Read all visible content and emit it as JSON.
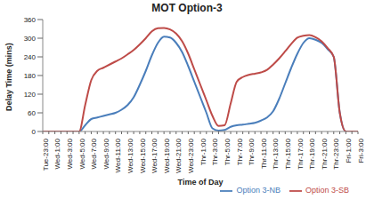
{
  "chart_data": {
    "type": "line",
    "title": "MOT Option-3",
    "x_label": "Time of Day",
    "y_label": "Delay Time (mins)",
    "categories": [
      "Tue-23:00",
      null,
      "Wed-1:00",
      null,
      "Wed-3:00",
      null,
      "Wed-5:00",
      null,
      "Wed-7:00",
      null,
      "Wed-9:00",
      null,
      "Wed-11:00",
      null,
      "Wed-13:00",
      null,
      "Wed-15:00",
      null,
      "Wed-17:00",
      null,
      "Wed-19:00",
      null,
      "Wed-21:00",
      null,
      "Wed-23:00",
      null,
      "Thr-1:00",
      null,
      "Thr-3:00",
      null,
      "Thr-5:00",
      null,
      "Thr-7:00",
      null,
      "Thr-9:00",
      null,
      "Thr-11:00",
      null,
      "Thr-13:00",
      null,
      "Thr-15:00",
      null,
      "Thr-17:00",
      null,
      "Thr-19:00",
      null,
      "Thr-21:00",
      null,
      "Thr-23:00",
      null,
      "Fri-1:00",
      null,
      "Fri-3:00"
    ],
    "series": [
      {
        "name": "Option 3-NB",
        "color": "#4a7ebb",
        "values": [
          0,
          0,
          0,
          0,
          0,
          0,
          0,
          20,
          40,
          45,
          50,
          55,
          60,
          70,
          85,
          110,
          150,
          195,
          245,
          285,
          305,
          302,
          285,
          255,
          210,
          160,
          110,
          60,
          10,
          3,
          5,
          15,
          20,
          22,
          25,
          28,
          35,
          45,
          65,
          105,
          155,
          205,
          250,
          285,
          300,
          295,
          285,
          265,
          240,
          60,
          0,
          0,
          0
        ]
      },
      {
        "name": "Option 3-SB",
        "color": "#be4b48",
        "values": [
          0,
          0,
          0,
          0,
          0,
          0,
          0,
          85,
          165,
          195,
          205,
          215,
          225,
          235,
          248,
          262,
          280,
          300,
          322,
          332,
          333,
          328,
          315,
          290,
          250,
          200,
          150,
          100,
          50,
          18,
          20,
          90,
          160,
          175,
          182,
          186,
          190,
          198,
          215,
          235,
          258,
          282,
          302,
          308,
          310,
          303,
          290,
          268,
          240,
          60,
          0,
          0,
          0
        ]
      }
    ],
    "ylim": [
      0,
      360
    ],
    "yticks": [
      0,
      60,
      120,
      180,
      240,
      300,
      360
    ],
    "grid": false,
    "legend": "bottom-right"
  }
}
